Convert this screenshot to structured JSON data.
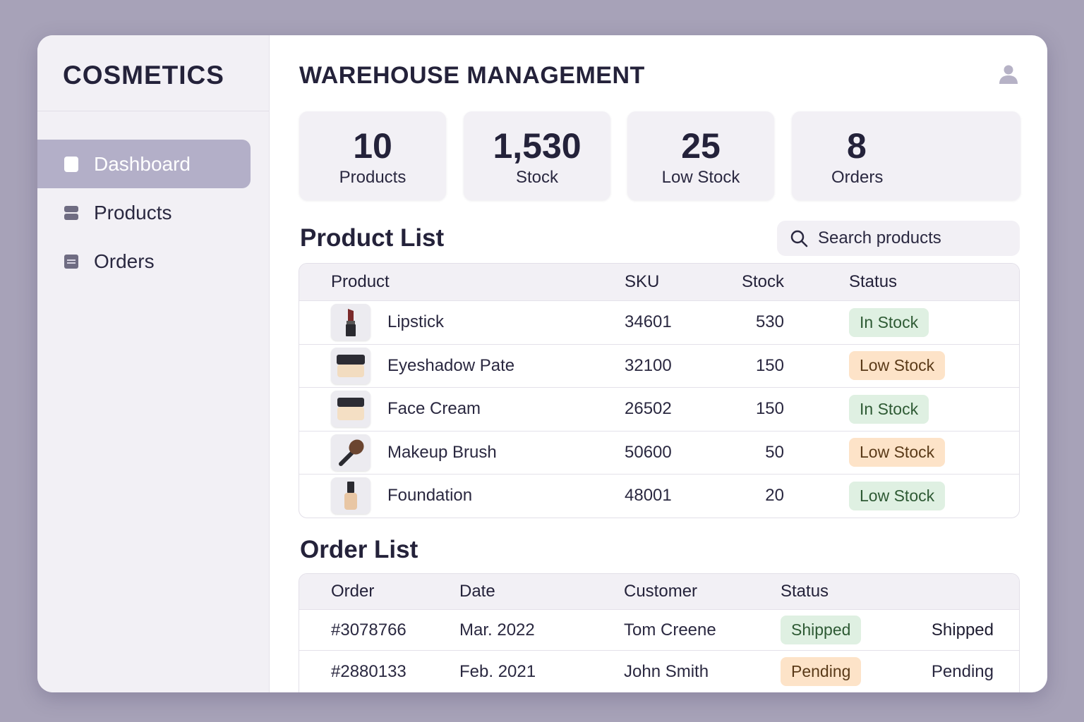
{
  "brand": "COSMETICS",
  "nav": [
    {
      "label": "Dashboard",
      "icon": "dashboard-icon",
      "active": true
    },
    {
      "label": "Products",
      "icon": "products-icon",
      "active": false
    },
    {
      "label": "Orders",
      "icon": "orders-icon",
      "active": false
    }
  ],
  "header": {
    "title": "WAREHOUSE MANAGEMENT",
    "user_icon": "user-icon"
  },
  "stats": [
    {
      "value": "10",
      "label": "Products"
    },
    {
      "value": "1,530",
      "label": "Stock"
    },
    {
      "value": "25",
      "label": "Low Stock"
    },
    {
      "value": "8",
      "label": "Orders"
    }
  ],
  "product_list": {
    "title": "Product List",
    "search_placeholder": "Search products",
    "columns": [
      "Product",
      "SKU",
      "Stock",
      "Status"
    ],
    "rows": [
      {
        "name": "Lipstick",
        "sku": "34601",
        "stock": "530",
        "status": "In Stock",
        "status_color": "#dff0e2",
        "thumb": "lipstick-icon"
      },
      {
        "name": "Eyeshadow Pate",
        "sku": "32100",
        "stock": "150",
        "status": "Low Stock",
        "status_color": "#fde3c8",
        "thumb": "jar-icon"
      },
      {
        "name": "Face Cream",
        "sku": "26502",
        "stock": "150",
        "status": "In Stock",
        "status_color": "#dff0e2",
        "thumb": "jar-icon"
      },
      {
        "name": "Makeup Brush",
        "sku": "50600",
        "stock": "50",
        "status": "Low Stock",
        "status_color": "#fde3c8",
        "thumb": "brush-icon"
      },
      {
        "name": "Foundation",
        "sku": "48001",
        "stock": "20",
        "status": "Low Stock",
        "status_color": "#dff0e2",
        "thumb": "foundation-bottle-icon"
      }
    ]
  },
  "order_list": {
    "title": "Order List",
    "columns": [
      "Order",
      "Date",
      "Customer",
      "Status"
    ],
    "rows": [
      {
        "order": "#3078766",
        "date": "Mar. 2022",
        "customer": "Tom Creene",
        "status": "Shipped",
        "status_color": "#dff0e2",
        "status_text": "Shipped"
      },
      {
        "order": "#2880133",
        "date": "Feb. 2021",
        "customer": "John Smith",
        "status": "Pending",
        "status_color": "#fde3c8",
        "status_text": "Pending"
      }
    ]
  }
}
